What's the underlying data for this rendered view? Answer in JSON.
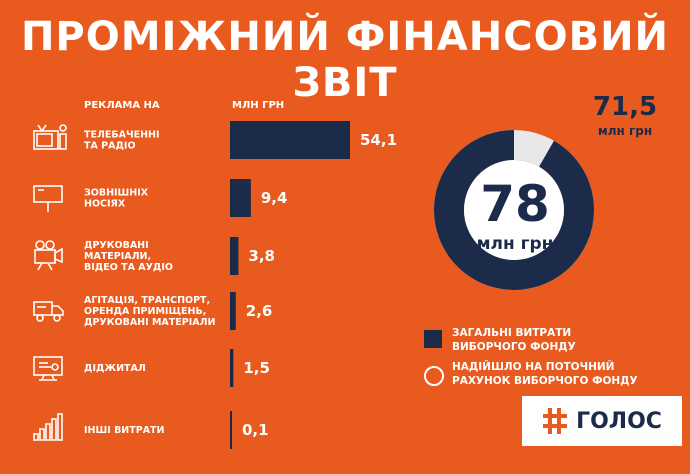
{
  "title": "ПРОМІЖНИЙ ФІНАНСОВИЙ ЗВІТ",
  "colors": {
    "background": "#E85A1E",
    "bar": "#1C2B4A",
    "donut_received": "#1C2B4A",
    "donut_remaining": "#E8E8E8",
    "text": "#FFFFFF"
  },
  "chart_data": [
    {
      "type": "bar",
      "orientation": "horizontal",
      "category_header": "РЕКЛАМА НА",
      "value_header": "МЛН ГРН",
      "categories": [
        {
          "label": [
            "ТЕЛЕБАЧЕННІ",
            "ТА РАДІО"
          ],
          "icon": "tv-radio-icon"
        },
        {
          "label": [
            "ЗОВНІШНІХ",
            "НОСІЯХ"
          ],
          "icon": "billboard-icon"
        },
        {
          "label": [
            "ДРУКОВАНІ",
            "МАТЕРІАЛИ,",
            "ВІДЕО ТА АУДІО"
          ],
          "icon": "video-camera-icon"
        },
        {
          "label": [
            "АГІТАЦІЯ, ТРАНСПОРТ,",
            "ОРЕНДА ПРИМІЩЕНЬ,",
            "ДРУКОВАНІ МАТЕРІАЛИ"
          ],
          "icon": "truck-icon"
        },
        {
          "label": [
            "ДІДЖИТАЛ"
          ],
          "icon": "monitor-icon"
        },
        {
          "label": [
            "ІНШІ ВИТРАТИ"
          ],
          "icon": "bar-chart-icon"
        }
      ],
      "values": [
        54.1,
        9.4,
        3.8,
        2.6,
        1.5,
        0.1
      ],
      "value_labels": [
        "54,1",
        "9,4",
        "3,8",
        "2,6",
        "1,5",
        "0,1"
      ]
    },
    {
      "type": "pie",
      "style": "donut",
      "total": 78,
      "total_label": "78",
      "total_unit": "млн грн",
      "spent": 71.5,
      "spent_label": "71,5",
      "spent_unit": "млн грн",
      "legend": [
        "ЗАГАЛЬНІ ВИТРАТИ ВИБОРЧОГО ФОНДУ",
        "НАДІЙШЛО НА ПОТОЧНИЙ РАХУНОК ВИБОРЧОГО ФОНДУ"
      ]
    }
  ],
  "legend_lines": [
    [
      "ЗАГАЛЬНІ ВИТРАТИ",
      "ВИБОРЧОГО ФОНДУ"
    ],
    [
      "НАДІЙШЛО НА ПОТОЧНИЙ",
      "РАХУНОК ВИБОРЧОГО ФОНДУ"
    ]
  ],
  "logo": {
    "text": "ГОЛОС",
    "icon": "hash-logo-icon"
  }
}
